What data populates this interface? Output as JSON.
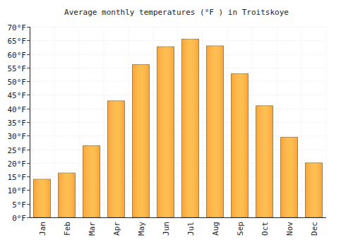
{
  "chart_data": {
    "type": "bar",
    "title": "Average monthly temperatures (°F ) in Troitskoye",
    "categories": [
      "Jan",
      "Feb",
      "Mar",
      "Apr",
      "May",
      "Jun",
      "Jul",
      "Aug",
      "Sep",
      "Oct",
      "Nov",
      "Dec"
    ],
    "values": [
      14,
      16.3,
      26.3,
      42.8,
      56.1,
      62.7,
      65.5,
      63,
      52.8,
      41,
      29.4,
      20
    ],
    "color": "#fba52e",
    "ylim": [
      0,
      70
    ],
    "yticks": [
      {
        "value": 0,
        "label": "0°F"
      },
      {
        "value": 5,
        "label": "5°F"
      },
      {
        "value": 10,
        "label": "10°F"
      },
      {
        "value": 15,
        "label": "15°F"
      },
      {
        "value": 20,
        "label": "20°F"
      },
      {
        "value": 25,
        "label": "25°F"
      },
      {
        "value": 30,
        "label": "30°F"
      },
      {
        "value": 35,
        "label": "35°F"
      },
      {
        "value": 40,
        "label": "40°F"
      },
      {
        "value": 45,
        "label": "45°F"
      },
      {
        "value": 50,
        "label": "50°F"
      },
      {
        "value": 55,
        "label": "55°F"
      },
      {
        "value": 60,
        "label": "60°F"
      },
      {
        "value": 65,
        "label": "65°F"
      },
      {
        "value": 70,
        "label": "70°F"
      }
    ],
    "grid": true
  }
}
